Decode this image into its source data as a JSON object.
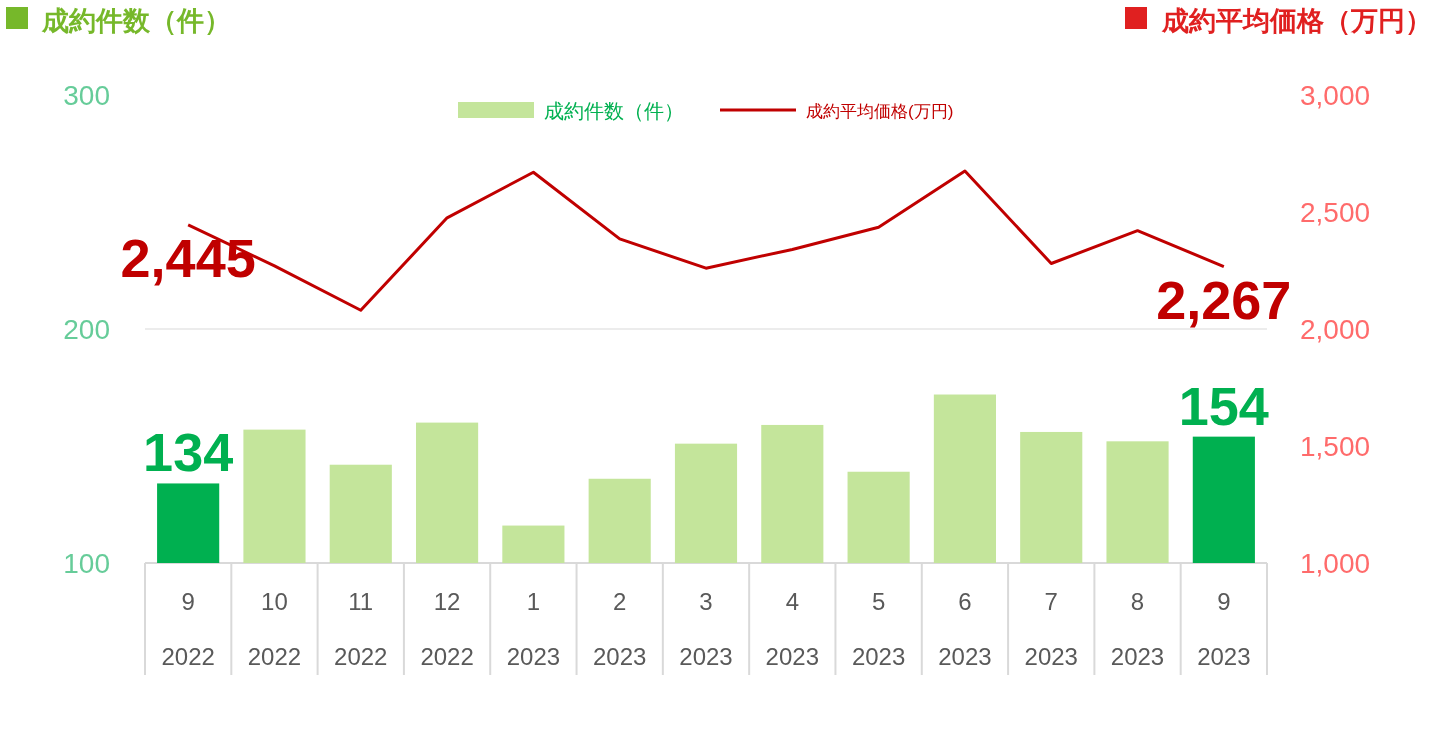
{
  "chart_data": {
    "type": "bar",
    "ylabel": "成約件数（件）",
    "y2label": "成約平均価格（万円）",
    "categories": [
      "9\n2022",
      "10\n2022",
      "11\n2022",
      "12\n2022",
      "1\n2023",
      "2\n2023",
      "3\n2023",
      "4\n2023",
      "5\n2023",
      "6\n2023",
      "7\n2023",
      "8\n2023",
      "9\n2023"
    ],
    "ylim": [
      100,
      300
    ],
    "yticks": [
      100,
      200,
      300
    ],
    "y2lim": [
      1000,
      3000
    ],
    "y2ticks": [
      {
        "value": 1000,
        "label": "1,000"
      },
      {
        "value": 1500,
        "label": "1,500"
      },
      {
        "value": 2000,
        "label": "2,000"
      },
      {
        "value": 2500,
        "label": "2,500"
      },
      {
        "value": 3000,
        "label": "3,000"
      }
    ],
    "grid": "y",
    "legend": "top",
    "series": [
      {
        "name": "成約件数（件）",
        "color": "#c4e59b",
        "colors": [
          "#00b050",
          "#c4e59b",
          "#c4e59b",
          "#c4e59b",
          "#c4e59b",
          "#c4e59b",
          "#c4e59b",
          "#c4e59b",
          "#c4e59b",
          "#c4e59b",
          "#c4e59b",
          "#c4e59b",
          "#00b050"
        ],
        "values": [
          134,
          157,
          142,
          160,
          116,
          136,
          151,
          159,
          139,
          172,
          156,
          152,
          154
        ],
        "value_labels": [
          "134",
          null,
          null,
          null,
          null,
          null,
          null,
          null,
          null,
          null,
          null,
          null,
          "154"
        ]
      },
      {
        "name": "成約平均価格(万円)",
        "type": "line",
        "axis": "y2",
        "color": "#c00000",
        "values": [
          2445,
          2270,
          2080,
          2475,
          2670,
          2385,
          2260,
          2340,
          2435,
          2675,
          2280,
          2420,
          2267
        ],
        "value_labels": [
          "2,445",
          null,
          null,
          null,
          null,
          null,
          null,
          null,
          null,
          null,
          null,
          null,
          "2,267"
        ]
      }
    ]
  }
}
